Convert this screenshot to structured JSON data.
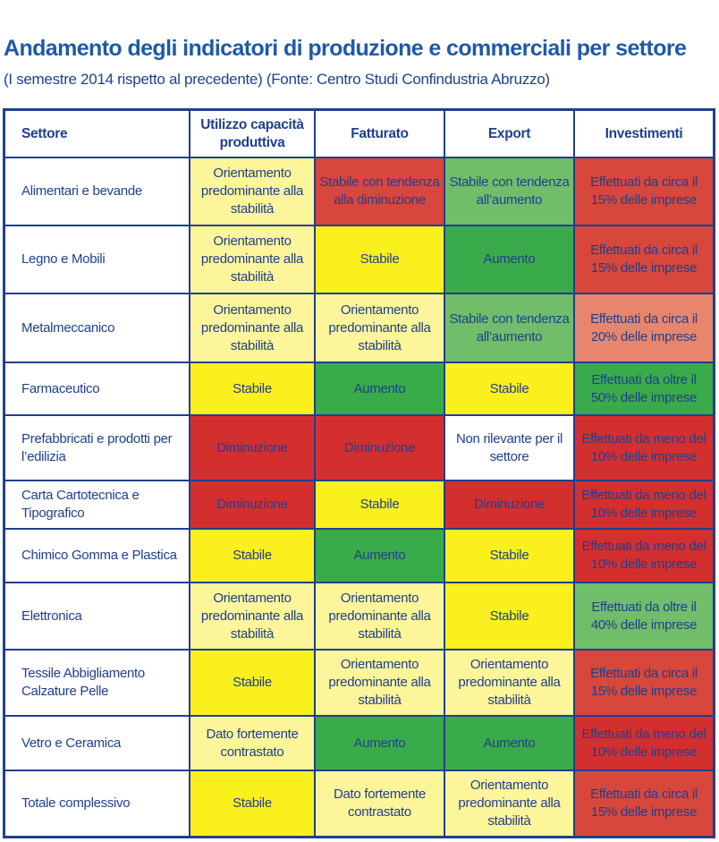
{
  "title": "Andamento degli indicatori di produzione e commerciali per settore",
  "subtitle": "(I semestre 2014 rispetto al precedente) (Fonte: Centro Studi Confindustria Abruzzo)",
  "headers": [
    "Settore",
    "Utilizzo capacità produttiva",
    "Fatturato",
    "Export",
    "Investimenti"
  ],
  "rows": [
    {
      "sector": "Alimentari e bevande",
      "cells": [
        {
          "text": "Orientamento predominante alla stabilità",
          "color": "#fdf59a"
        },
        {
          "text": "Stabile con tendenza alla diminuzione",
          "color": "#d7473c"
        },
        {
          "text": "Stabile con tendenza all’aumento",
          "color": "#70bd6a"
        },
        {
          "text": "Effettuati da circa il 15% delle imprese",
          "color": "#d7473c"
        }
      ]
    },
    {
      "sector": "Legno e Mobili",
      "cells": [
        {
          "text": "Orientamento predominante alla stabilità",
          "color": "#fdf59a"
        },
        {
          "text": "Stabile",
          "color": "#faf01e"
        },
        {
          "text": "Aumento",
          "color": "#3aab4a"
        },
        {
          "text": "Effettuati da circa il 15% delle imprese",
          "color": "#d7473c"
        }
      ]
    },
    {
      "sector": "Metalmeccanico",
      "cells": [
        {
          "text": "Orientamento predominante alla stabilità",
          "color": "#fdf59a"
        },
        {
          "text": "Orientamento predominante alla stabilità",
          "color": "#fdf59a"
        },
        {
          "text": "Stabile con tendenza all’aumento",
          "color": "#70bd6a"
        },
        {
          "text": "Effettuati da circa il 20% delle imprese",
          "color": "#e8866d"
        }
      ]
    },
    {
      "sector": "Farmaceutico",
      "cells": [
        {
          "text": "Stabile",
          "color": "#faf01e"
        },
        {
          "text": "Aumento",
          "color": "#3aab4a"
        },
        {
          "text": "Stabile",
          "color": "#faf01e"
        },
        {
          "text": "Effettuati da oltre il 50% delle imprese",
          "color": "#3aab4a"
        }
      ]
    },
    {
      "sector": "Prefabbricati e prodotti per l’edilizia",
      "cells": [
        {
          "text": "Diminuzione",
          "color": "#d42f2f"
        },
        {
          "text": "Diminuzione",
          "color": "#d42f2f"
        },
        {
          "text": "Non rilevante per il settore",
          "color": "#ffffff"
        },
        {
          "text": "Effettuati da meno del 10% delle imprese",
          "color": "#d42f2f"
        }
      ]
    },
    {
      "sector": "Carta Cartotecnica e Tipografico",
      "cells": [
        {
          "text": "Diminuzione",
          "color": "#d42f2f"
        },
        {
          "text": "Stabile",
          "color": "#faf01e"
        },
        {
          "text": "Diminuzione",
          "color": "#d42f2f"
        },
        {
          "text": "Effettuati da meno del 10% delle imprese",
          "color": "#d42f2f"
        }
      ]
    },
    {
      "sector": "Chimico Gomma e Plastica",
      "cells": [
        {
          "text": "Stabile",
          "color": "#faf01e"
        },
        {
          "text": "Aumento",
          "color": "#3aab4a"
        },
        {
          "text": "Stabile",
          "color": "#faf01e"
        },
        {
          "text": "Effettuati da meno del 10% delle imprese",
          "color": "#d42f2f"
        }
      ]
    },
    {
      "sector": "Elettronica",
      "cells": [
        {
          "text": "Orientamento predominante alla stabilità",
          "color": "#fdf59a"
        },
        {
          "text": "Orientamento predominante alla stabilità",
          "color": "#fdf59a"
        },
        {
          "text": "Stabile",
          "color": "#faf01e"
        },
        {
          "text": "Effettuati da oltre il 40% delle imprese",
          "color": "#70bd6a"
        }
      ]
    },
    {
      "sector": "Tessile Abbigliamento Calzature Pelle",
      "cells": [
        {
          "text": "Stabile",
          "color": "#faf01e"
        },
        {
          "text": "Orientamento predominante alla stabilità",
          "color": "#fdf59a"
        },
        {
          "text": "Orientamento predominante alla stabilità",
          "color": "#fdf59a"
        },
        {
          "text": "Effettuati da circa il 15% delle imprese",
          "color": "#d7473c"
        }
      ]
    },
    {
      "sector": "Vetro e Ceramica",
      "cells": [
        {
          "text": "Dato fortemente contrastato",
          "color": "#fdf59a"
        },
        {
          "text": "Aumento",
          "color": "#3aab4a"
        },
        {
          "text": "Aumento",
          "color": "#3aab4a"
        },
        {
          "text": "Effettuati da meno del 10% delle imprese",
          "color": "#d42f2f"
        }
      ]
    },
    {
      "sector": "Totale complessivo",
      "cells": [
        {
          "text": "Stabile",
          "color": "#faf01e"
        },
        {
          "text": "Dato fortemente contrastato",
          "color": "#fdf59a"
        },
        {
          "text": "Orientamento predominante alla stabilità",
          "color": "#fdf59a"
        },
        {
          "text": "Effettuati da circa il 15% delle imprese",
          "color": "#d7473c"
        }
      ]
    }
  ]
}
